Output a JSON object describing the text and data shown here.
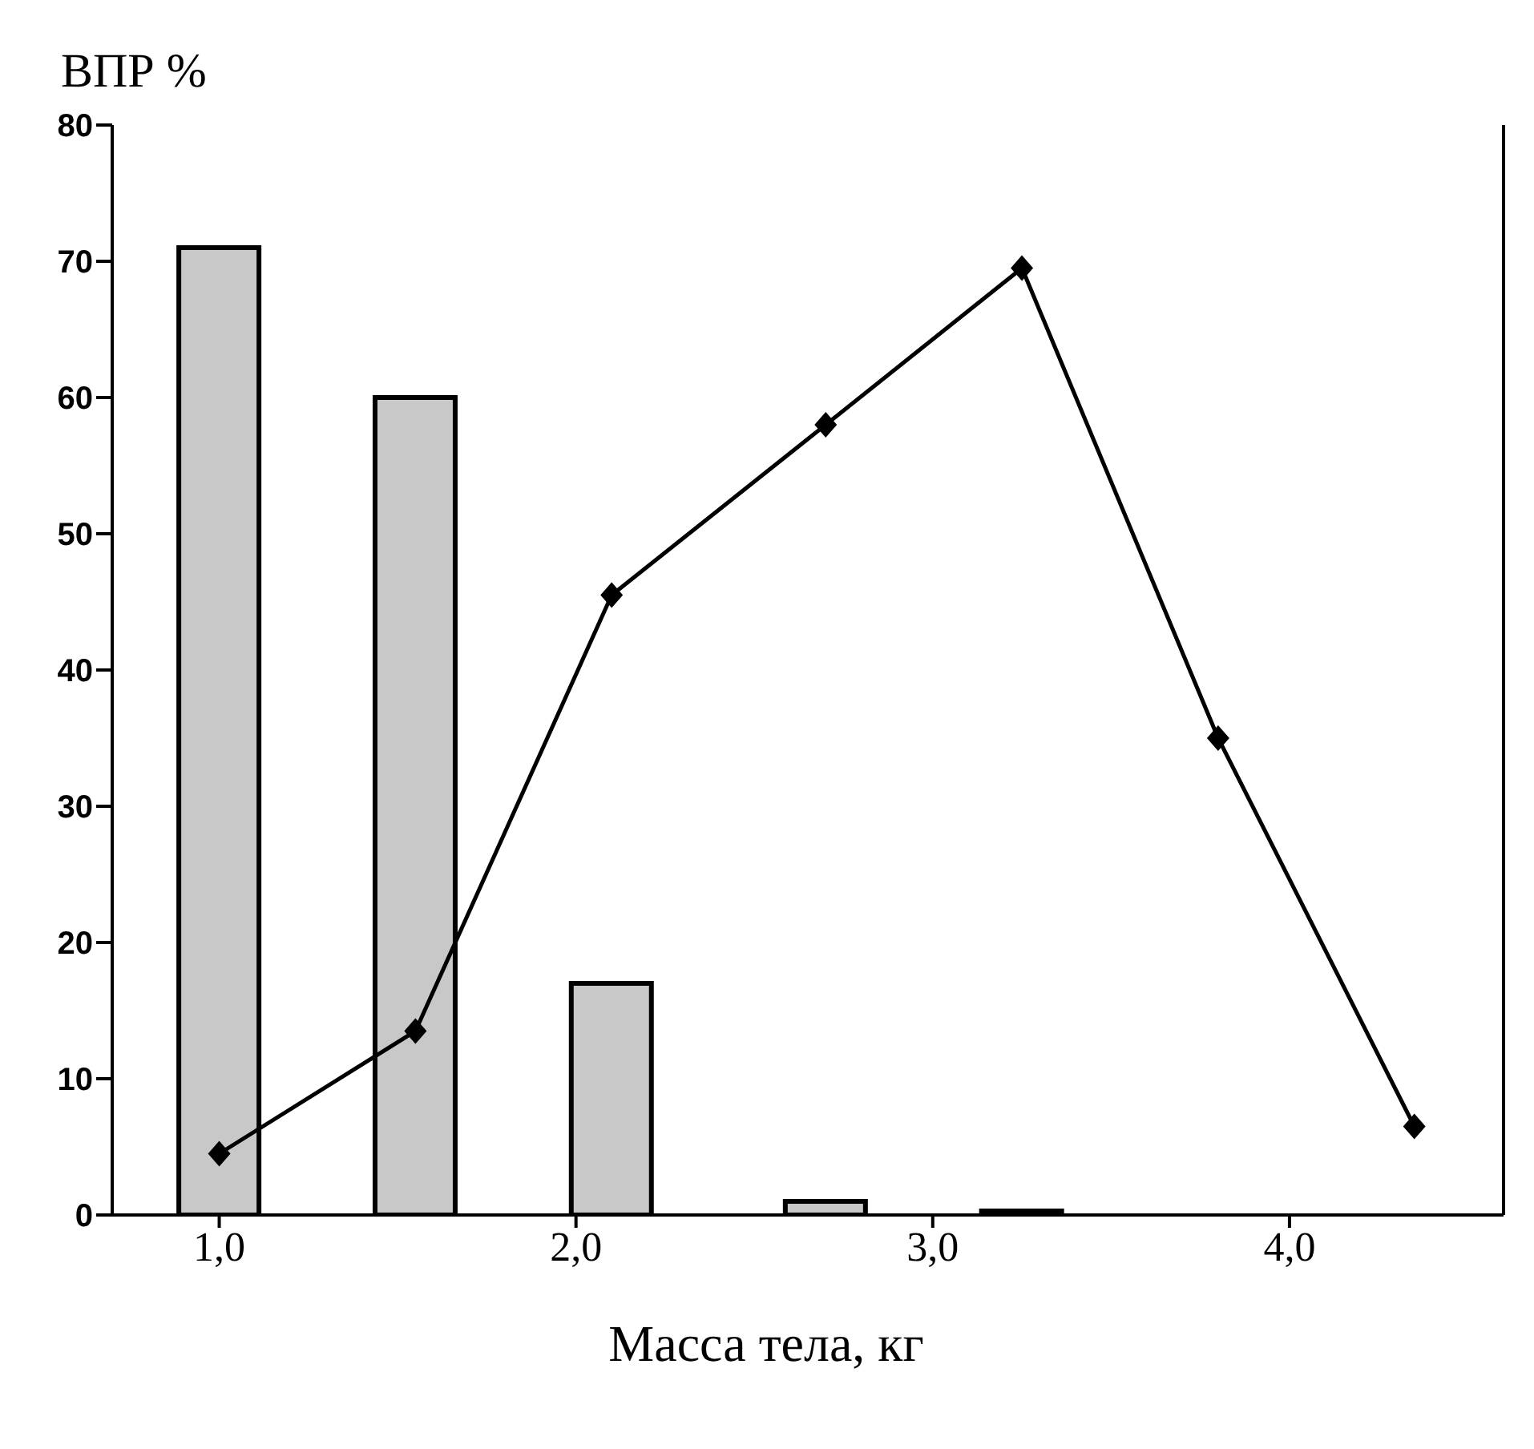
{
  "chart_data": {
    "type": "bar",
    "ylabel": "ВПР %",
    "xlabel": "Масса тела, кг",
    "xlim": [
      0.7,
      4.6
    ],
    "xticks": [
      {
        "value": 1,
        "label": "1,0"
      },
      {
        "value": 2,
        "label": "2,0"
      },
      {
        "value": 3,
        "label": "3,0"
      },
      {
        "value": 4,
        "label": "4,0"
      }
    ],
    "ylim": [
      0,
      80
    ],
    "yticks": [
      0,
      10,
      20,
      30,
      40,
      50,
      60,
      70,
      80
    ],
    "series": [
      {
        "color": "#c8c8c8",
        "x": [
          1.0,
          1.55,
          2.1,
          2.7,
          3.25
        ],
        "values": [
          71,
          60,
          17,
          1,
          0.3
        ]
      },
      {
        "type": "line",
        "color": "#000000",
        "marker": "diamond",
        "x": [
          1.0,
          1.55,
          2.1,
          2.7,
          3.25,
          3.8,
          4.35
        ],
        "values": [
          4.5,
          13.5,
          45.5,
          58,
          69.5,
          35,
          6.5
        ]
      }
    ]
  }
}
